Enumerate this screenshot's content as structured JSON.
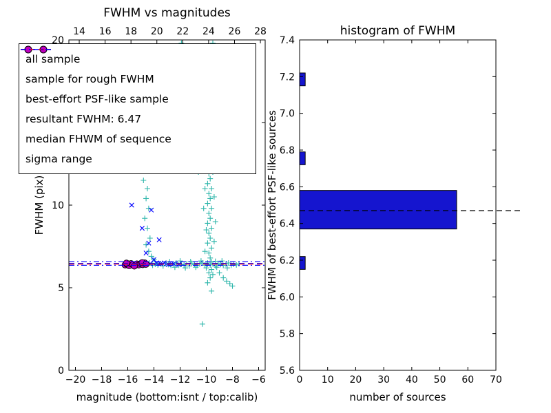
{
  "figure": {
    "background": "#ffffff"
  },
  "legend": {
    "items": [
      {
        "label": "all sample",
        "type": "marker",
        "marker": "plus",
        "color": "#2cb5aa"
      },
      {
        "label": "sample for rough FWHM",
        "type": "marker",
        "marker": "x",
        "color": "#0000ff"
      },
      {
        "label": "best-effort PSF-like sample",
        "type": "marker",
        "marker": "circle",
        "color": "#bf00bf",
        "edge": "#000000"
      },
      {
        "label": "resultant FWHM: 6.47",
        "type": "line",
        "dash": "dashed",
        "color": "#0000ff"
      },
      {
        "label": "median FHWM of sequence",
        "type": "line",
        "dash": "dashed",
        "color": "#ff0000"
      },
      {
        "label": "sigma range",
        "type": "line",
        "dash": "dashdot",
        "color": "#0000ff"
      }
    ]
  },
  "chart_data": [
    {
      "type": "scatter",
      "title": "FWHM vs magnitudes",
      "xlabel": "magnitude (bottom:isnt / top:calib)",
      "ylabel": "FWHM (pix)",
      "xlim": [
        -20.5,
        -5.5
      ],
      "ylim": [
        0,
        20
      ],
      "xticks": [
        -20,
        -18,
        -16,
        -14,
        -12,
        -10,
        -8,
        -6
      ],
      "yticks": [
        0,
        5,
        10,
        15,
        20
      ],
      "top_axis": {
        "lim": [
          13.2,
          28.37
        ],
        "ticks": [
          14,
          16,
          18,
          20,
          22,
          24,
          26,
          28
        ]
      },
      "series": [
        {
          "name": "all sample",
          "marker": "plus",
          "color": "#2cb5aa",
          "points": [
            [
              -16.1,
              6.38
            ],
            [
              -15.85,
              6.45
            ],
            [
              -15.6,
              6.32
            ],
            [
              -15.35,
              6.48
            ],
            [
              -15.1,
              6.4
            ],
            [
              -14.85,
              6.35
            ],
            [
              -14.6,
              6.44
            ],
            [
              -14.35,
              6.5
            ],
            [
              -14.1,
              6.36
            ],
            [
              -13.9,
              6.42
            ],
            [
              -13.7,
              6.38
            ],
            [
              -13.5,
              6.45
            ],
            [
              -13.3,
              6.32
            ],
            [
              -13.1,
              6.48
            ],
            [
              -12.9,
              6.4
            ],
            [
              -12.7,
              6.35
            ],
            [
              -12.5,
              6.44
            ],
            [
              -12.3,
              6.5
            ],
            [
              -12.1,
              6.36
            ],
            [
              -11.9,
              6.42
            ],
            [
              -11.7,
              6.38
            ],
            [
              -11.5,
              6.45
            ],
            [
              -11.3,
              6.32
            ],
            [
              -11.1,
              6.48
            ],
            [
              -10.9,
              6.4
            ],
            [
              -10.7,
              6.35
            ],
            [
              -10.5,
              6.44
            ],
            [
              -10.3,
              6.5
            ],
            [
              -10.1,
              6.36
            ],
            [
              -9.9,
              6.42
            ],
            [
              -9.7,
              6.38
            ],
            [
              -9.5,
              6.45
            ],
            [
              -9.3,
              6.32
            ],
            [
              -9.1,
              6.48
            ],
            [
              -8.9,
              6.4
            ],
            [
              -8.7,
              6.35
            ],
            [
              -8.5,
              6.44
            ],
            [
              -8.3,
              6.5
            ],
            [
              -8.1,
              6.36
            ],
            [
              -7.9,
              6.42
            ],
            [
              -7.7,
              6.38
            ],
            [
              -7.5,
              6.45
            ],
            [
              -12.8,
              6.58
            ],
            [
              -12.4,
              6.24
            ],
            [
              -12.0,
              6.62
            ],
            [
              -11.6,
              6.2
            ],
            [
              -11.2,
              6.58
            ],
            [
              -10.8,
              6.24
            ],
            [
              -10.4,
              6.62
            ],
            [
              -10.0,
              6.2
            ],
            [
              -9.6,
              6.58
            ],
            [
              -9.2,
              6.24
            ],
            [
              -8.8,
              6.62
            ],
            [
              -8.4,
              6.2
            ],
            [
              -9.0,
              5.9
            ],
            [
              -8.7,
              5.6
            ],
            [
              -8.45,
              5.4
            ],
            [
              -8.2,
              5.25
            ],
            [
              -8.0,
              5.1
            ],
            [
              -10.3,
              2.8
            ],
            [
              -9.6,
              4.8
            ],
            [
              -15.0,
              13.6
            ],
            [
              -14.9,
              13.0
            ],
            [
              -14.7,
              12.6
            ],
            [
              -14.6,
              12.2
            ],
            [
              -14.8,
              11.5
            ],
            [
              -14.5,
              11.0
            ],
            [
              -14.6,
              10.4
            ],
            [
              -14.4,
              9.8
            ],
            [
              -14.7,
              9.2
            ],
            [
              -14.5,
              8.6
            ],
            [
              -14.3,
              8.0
            ],
            [
              -14.6,
              7.6
            ],
            [
              -14.4,
              7.2
            ],
            [
              -14.2,
              6.9
            ],
            [
              -14.0,
              6.7
            ],
            [
              -9.9,
              5.3
            ],
            [
              -9.7,
              5.6
            ],
            [
              -9.8,
              5.9
            ],
            [
              -9.6,
              6.1
            ],
            [
              -9.9,
              6.5
            ],
            [
              -9.7,
              6.8
            ],
            [
              -9.8,
              7.1
            ],
            [
              -9.6,
              7.4
            ],
            [
              -9.9,
              7.7
            ],
            [
              -9.7,
              8.0
            ],
            [
              -9.8,
              8.3
            ],
            [
              -9.6,
              8.6
            ],
            [
              -9.9,
              8.9
            ],
            [
              -9.7,
              9.2
            ],
            [
              -9.8,
              9.5
            ],
            [
              -9.6,
              9.8
            ],
            [
              -9.9,
              10.1
            ],
            [
              -9.7,
              10.4
            ],
            [
              -9.8,
              10.7
            ],
            [
              -9.6,
              11.0
            ],
            [
              -9.9,
              11.3
            ],
            [
              -9.7,
              11.6
            ],
            [
              -9.8,
              11.9
            ],
            [
              -10.0,
              12.2
            ],
            [
              -9.5,
              12.0
            ],
            [
              -10.1,
              11.0
            ],
            [
              -9.4,
              10.5
            ],
            [
              -10.2,
              9.8
            ],
            [
              -9.3,
              9.0
            ],
            [
              -10.0,
              8.5
            ],
            [
              -9.4,
              7.8
            ],
            [
              -10.1,
              7.2
            ],
            [
              -9.3,
              6.6
            ],
            [
              -10.0,
              6.2
            ],
            [
              -9.5,
              5.8
            ],
            [
              -10.3,
              12.5
            ],
            [
              -10.0,
              13.0
            ],
            [
              -9.7,
              13.5
            ],
            [
              -10.2,
              14.0
            ],
            [
              -9.9,
              14.5
            ],
            [
              -9.6,
              15.0
            ],
            [
              -10.3,
              15.5
            ],
            [
              -10.0,
              16.0
            ],
            [
              -9.7,
              16.5
            ],
            [
              -10.2,
              17.0
            ],
            [
              -9.9,
              17.5
            ],
            [
              -9.6,
              18.0
            ],
            [
              -10.1,
              18.5
            ],
            [
              -9.8,
              19.0
            ],
            [
              -10.0,
              19.5
            ],
            [
              -9.5,
              19.8
            ],
            [
              -10.4,
              13.8
            ],
            [
              -9.4,
              14.2
            ],
            [
              -10.5,
              16.8
            ],
            [
              -9.3,
              17.3
            ],
            [
              -10.4,
              18.8
            ],
            [
              -9.4,
              19.4
            ],
            [
              -9.2,
              15.6
            ],
            [
              -10.6,
              15.2
            ],
            [
              -11.9,
              19.8
            ],
            [
              -11.6,
              19.2
            ],
            [
              -11.3,
              18.5
            ],
            [
              -11.0,
              17.8
            ],
            [
              -11.5,
              17.2
            ],
            [
              -11.2,
              16.6
            ],
            [
              -10.9,
              16.0
            ],
            [
              -11.4,
              15.4
            ],
            [
              -11.1,
              14.8
            ],
            [
              -10.8,
              14.2
            ],
            [
              -11.6,
              13.6
            ],
            [
              -10.7,
              13.0
            ],
            [
              -11.3,
              12.4
            ],
            [
              -10.6,
              12.0
            ],
            [
              -12.0,
              14.5
            ],
            [
              -12.2,
              13.2
            ],
            [
              -12.4,
              12.5
            ]
          ]
        },
        {
          "name": "sample for rough FWHM",
          "marker": "x",
          "color": "#0000ff",
          "points": [
            [
              -15.7,
              10.0
            ],
            [
              -14.9,
              8.6
            ],
            [
              -14.2,
              9.7
            ],
            [
              -13.6,
              7.9
            ],
            [
              -14.4,
              7.7
            ],
            [
              -14.6,
              7.1
            ],
            [
              -14.0,
              6.7
            ],
            [
              -13.8,
              6.5
            ],
            [
              -13.5,
              6.45
            ],
            [
              -13.2,
              6.5
            ],
            [
              -15.9,
              6.45
            ],
            [
              -15.2,
              6.4
            ],
            [
              -14.8,
              6.35
            ],
            [
              -14.3,
              6.45
            ],
            [
              -12.9,
              6.4
            ],
            [
              -12.5,
              6.45
            ],
            [
              -12.1,
              6.4
            ]
          ]
        },
        {
          "name": "best-effort PSF-like sample",
          "marker": "circle",
          "color": "#bf00bf",
          "edge": "#000000",
          "points": [
            [
              -16.2,
              6.38
            ],
            [
              -16.05,
              6.42
            ],
            [
              -15.9,
              6.34
            ],
            [
              -15.75,
              6.46
            ],
            [
              -15.6,
              6.4
            ],
            [
              -15.45,
              6.35
            ],
            [
              -15.3,
              6.44
            ],
            [
              -15.15,
              6.38
            ],
            [
              -15.0,
              6.46
            ],
            [
              -14.85,
              6.4
            ],
            [
              -14.7,
              6.5
            ],
            [
              -16.1,
              6.49
            ],
            [
              -15.5,
              6.31
            ],
            [
              -14.9,
              6.52
            ],
            [
              -14.6,
              6.42
            ]
          ]
        }
      ],
      "lines": [
        {
          "label": "resultant FWHM: 6.47",
          "y": [
            6.47
          ],
          "dash": "dashed",
          "color": "#0000ff"
        },
        {
          "label": "median FHWM of sequence",
          "y": [
            6.43
          ],
          "dash": "dashed",
          "color": "#ff0000"
        },
        {
          "label": "sigma range",
          "y": [
            6.36,
            6.58
          ],
          "dash": "dashdot",
          "color": "#0000ff"
        }
      ]
    },
    {
      "type": "bar",
      "orientation": "horizontal",
      "title": "histogram of FWHM",
      "xlabel": "number of sources",
      "ylabel": "FWHM of best-effort PSF-like sources",
      "xlim": [
        0,
        70
      ],
      "ylim": [
        5.6,
        7.4
      ],
      "xticks": [
        0,
        10,
        20,
        30,
        40,
        50,
        60,
        70
      ],
      "yticks": [
        5.6,
        5.8,
        6.0,
        6.2,
        6.4,
        6.6,
        6.8,
        7.0,
        7.2,
        7.4
      ],
      "bar_color": "#1515cf",
      "bar_edge": "#000000",
      "bars": [
        {
          "y_low": 6.15,
          "y_high": 6.22,
          "count": 2
        },
        {
          "y_low": 6.37,
          "y_high": 6.58,
          "count": 56
        },
        {
          "y_low": 6.72,
          "y_high": 6.79,
          "count": 2
        },
        {
          "y_low": 7.15,
          "y_high": 7.22,
          "count": 2
        }
      ],
      "median_line": {
        "y": 6.47,
        "dash": "dashed",
        "color": "#000000"
      }
    }
  ]
}
